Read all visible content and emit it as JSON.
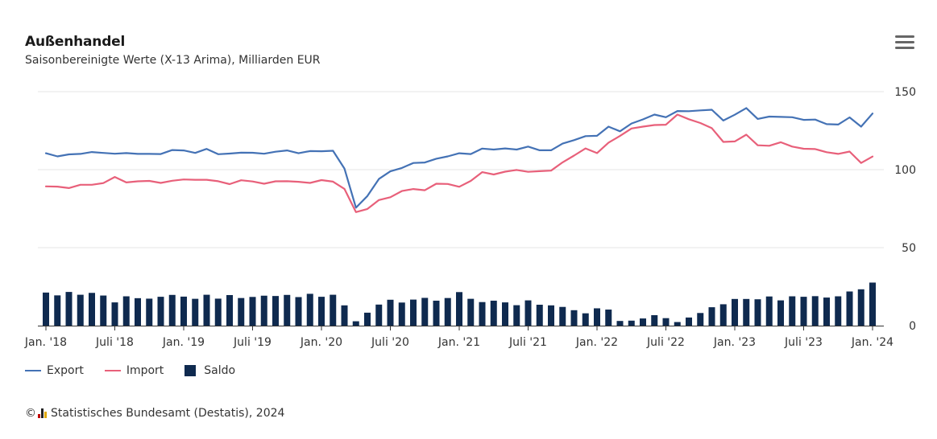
{
  "header": {
    "title": "Außenhandel",
    "subtitle": "Saisonbereinigte Werte (X-13 Arima), Milliarden EUR"
  },
  "credits": {
    "copyright": "©",
    "text": "Statistisches Bundesamt (Destatis), 2024"
  },
  "menu_icon": "hamburger-menu-icon",
  "chart_data": {
    "type": "line+bar",
    "title": "Außenhandel",
    "subtitle": "Saisonbereinigte Werte (X-13 Arima), Milliarden EUR",
    "x_start": "2018-01",
    "x_end": "2024-01",
    "x_tick_labels": [
      "Jan. '18",
      "Juli '18",
      "Jan. '19",
      "Juli '19",
      "Jan. '20",
      "Juli '20",
      "Jan. '21",
      "Juli '21",
      "Jan. '22",
      "Juli '22",
      "Jan. '23",
      "Juli '23",
      "Jan. '24"
    ],
    "y_tick_labels": [
      "0",
      "50",
      "100",
      "150"
    ],
    "ylim": [
      0,
      150
    ],
    "grid": true,
    "legend_position": "bottom-left",
    "colors": {
      "export": "#4472b5",
      "import": "#e8607a",
      "saldo": "#0f2a4f",
      "grid": "#e6e6e6"
    },
    "series": [
      {
        "name": "Export",
        "type": "line",
        "values": [
          110.5,
          108.5,
          109.8,
          110.1,
          111.3,
          110.7,
          110.2,
          110.6,
          110.1,
          110.1,
          110.0,
          112.6,
          112.3,
          110.7,
          113.3,
          109.9,
          110.3,
          110.9,
          110.8,
          110.2,
          111.5,
          112.3,
          110.5,
          111.9,
          111.8,
          112.1,
          100.7,
          75.6,
          83.1,
          94.0,
          98.9,
          101.1,
          104.3,
          104.6,
          107.0,
          108.5,
          110.5,
          110.0,
          113.5,
          112.9,
          113.6,
          112.9,
          114.8,
          112.4,
          112.4,
          116.7,
          118.9,
          121.5,
          121.7,
          127.6,
          124.6,
          129.6,
          132.2,
          135.3,
          133.6,
          137.6,
          137.5,
          138.0,
          138.4,
          131.5,
          135.2,
          139.5,
          132.5,
          134.0,
          133.8,
          133.6,
          131.9,
          132.1,
          129.2,
          128.9,
          133.5,
          127.6,
          136.0
        ]
      },
      {
        "name": "Import",
        "type": "line",
        "values": [
          89.3,
          89.1,
          88.2,
          90.3,
          90.3,
          91.4,
          95.3,
          91.8,
          92.5,
          92.8,
          91.5,
          92.9,
          93.7,
          93.5,
          93.5,
          92.6,
          90.7,
          93.2,
          92.4,
          91.0,
          92.5,
          92.6,
          92.2,
          91.5,
          93.3,
          92.3,
          87.7,
          72.8,
          74.8,
          80.5,
          82.3,
          86.3,
          87.6,
          86.8,
          91.0,
          90.8,
          89.0,
          92.8,
          98.4,
          96.9,
          98.7,
          99.8,
          98.6,
          99.0,
          99.4,
          104.7,
          109.0,
          113.6,
          110.6,
          117.3,
          121.6,
          126.4,
          127.6,
          128.6,
          128.8,
          135.3,
          132.3,
          129.9,
          126.6,
          117.8,
          118.1,
          122.4,
          115.6,
          115.3,
          117.6,
          114.8,
          113.4,
          113.2,
          111.2,
          110.1,
          111.6,
          104.3,
          108.4
        ]
      },
      {
        "name": "Saldo",
        "type": "bar",
        "values": [
          21.2,
          19.4,
          21.6,
          19.8,
          21.0,
          19.3,
          14.9,
          18.8,
          17.6,
          17.3,
          18.5,
          19.7,
          18.6,
          17.2,
          19.8,
          17.3,
          19.6,
          17.7,
          18.4,
          19.2,
          19.0,
          19.7,
          18.3,
          20.4,
          18.5,
          19.8,
          13.0,
          2.8,
          8.3,
          13.5,
          16.6,
          14.8,
          16.7,
          17.8,
          16.0,
          17.7,
          21.5,
          17.2,
          15.1,
          16.0,
          14.9,
          13.1,
          16.2,
          13.4,
          13.0,
          12.0,
          9.9,
          7.9,
          11.1,
          10.3,
          3.0,
          3.2,
          4.6,
          6.7,
          4.8,
          2.3,
          5.2,
          8.1,
          11.8,
          13.7,
          17.1,
          17.1,
          16.9,
          18.7,
          16.2,
          18.8,
          18.5,
          18.9,
          18.0,
          18.8,
          21.9,
          23.3,
          27.6
        ]
      }
    ]
  }
}
